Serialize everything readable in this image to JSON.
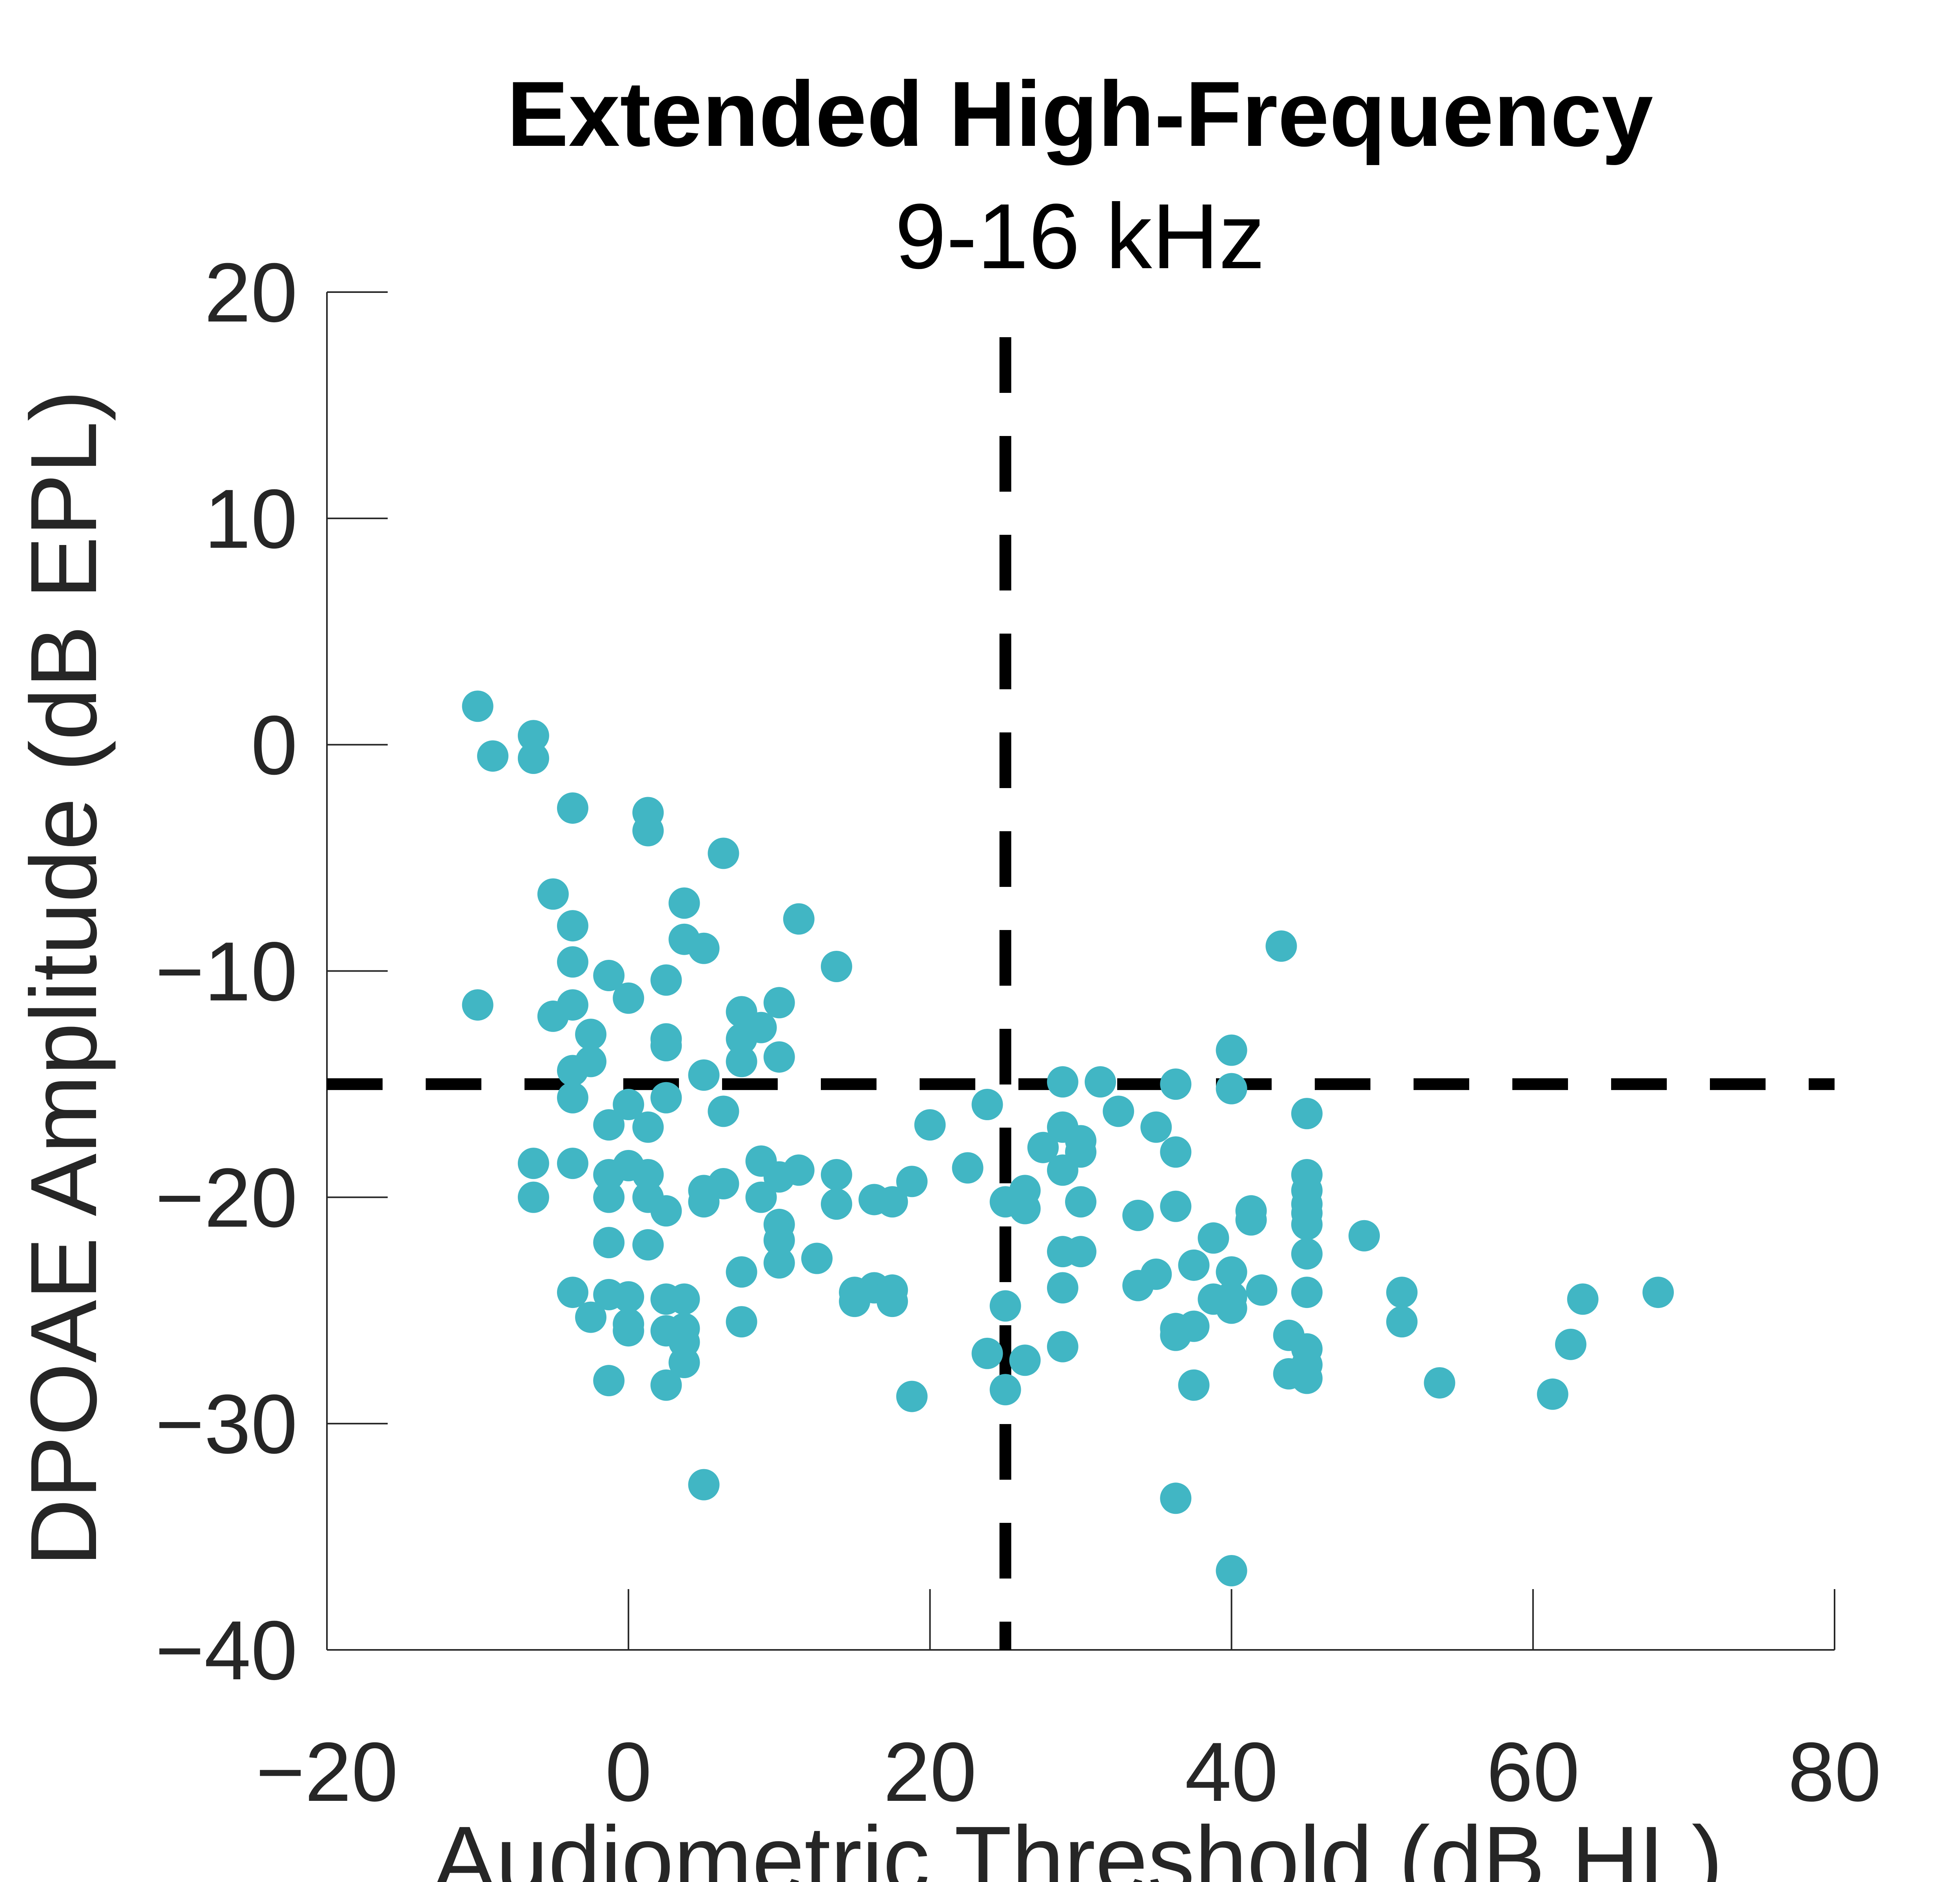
{
  "chart_data": {
    "type": "scatter",
    "title": "Extended High-Frequency",
    "subtitle": "9-16 kHz",
    "xlabel": "Audiometric Threshold (dB HL)",
    "ylabel": "DPOAE Amplitude (dB EPL)",
    "xlim": [
      -20,
      80
    ],
    "ylim": [
      -40,
      20
    ],
    "xticks": [
      -20,
      0,
      20,
      40,
      60,
      80
    ],
    "yticks": [
      -40,
      -30,
      -20,
      -10,
      0,
      10,
      20
    ],
    "xtick_labels": [
      "−20",
      "0",
      "20",
      "40",
      "60",
      "80"
    ],
    "ytick_labels": [
      "−40",
      "−30",
      "−20",
      "−10",
      "0",
      "10",
      "20"
    ],
    "marker_color": "#41B6C4",
    "reference_lines": {
      "x": 25,
      "y": -15,
      "style": "dashed",
      "color": "#000000"
    },
    "grid": false,
    "points": [
      [
        -10,
        1.7
      ],
      [
        -9,
        -0.5
      ],
      [
        -6.3,
        0.4
      ],
      [
        -6.3,
        -0.6
      ],
      [
        -3.7,
        -2.8
      ],
      [
        -5,
        -6.6
      ],
      [
        -3.7,
        -8
      ],
      [
        -3.7,
        -9.6
      ],
      [
        -10,
        -11.5
      ],
      [
        -5,
        -12
      ],
      [
        -3.7,
        -11.5
      ],
      [
        -2.5,
        -12.8
      ],
      [
        -2.5,
        -14
      ],
      [
        -3.7,
        -14.4
      ],
      [
        -3.7,
        -15.6
      ],
      [
        -6.3,
        -18.5
      ],
      [
        -3.7,
        -18.5
      ],
      [
        -6.3,
        -20
      ],
      [
        -1.3,
        -10.2
      ],
      [
        0,
        -11.2
      ],
      [
        1.3,
        -3
      ],
      [
        1.3,
        -3.8
      ],
      [
        3.7,
        -7
      ],
      [
        3.7,
        -8.6
      ],
      [
        5,
        -9
      ],
      [
        2.5,
        -10.4
      ],
      [
        6.3,
        -4.8
      ],
      [
        2.5,
        -13
      ],
      [
        2.5,
        -13.3
      ],
      [
        5,
        -14.6
      ],
      [
        2.5,
        -15.6
      ],
      [
        0,
        -15.9
      ],
      [
        -1.3,
        -16.8
      ],
      [
        1.3,
        -16.9
      ],
      [
        6.3,
        -16.2
      ],
      [
        0,
        -18.6
      ],
      [
        -1.3,
        -19
      ],
      [
        1.3,
        -19
      ],
      [
        -1.3,
        -20
      ],
      [
        1.3,
        -20
      ],
      [
        2.5,
        -20.6
      ],
      [
        5,
        -19.7
      ],
      [
        5,
        -20.2
      ],
      [
        6.3,
        -19.4
      ],
      [
        -1.3,
        -22
      ],
      [
        1.3,
        -22.1
      ],
      [
        -3.7,
        -24.2
      ],
      [
        -1.3,
        -24.3
      ],
      [
        0,
        -24.4
      ],
      [
        2.5,
        -24.5
      ],
      [
        3.7,
        -24.5
      ],
      [
        -2.5,
        -25.3
      ],
      [
        0,
        -25.6
      ],
      [
        0,
        -25.9
      ],
      [
        2.5,
        -25.9
      ],
      [
        3.7,
        -25.8
      ],
      [
        3.7,
        -26.4
      ],
      [
        3.7,
        -27.3
      ],
      [
        -1.3,
        -28.1
      ],
      [
        2.5,
        -28.3
      ],
      [
        5,
        -32.7
      ],
      [
        7.5,
        -11.8
      ],
      [
        7.5,
        -13
      ],
      [
        8.8,
        -12.5
      ],
      [
        10,
        -11.4
      ],
      [
        7.5,
        -14
      ],
      [
        10,
        -13.8
      ],
      [
        11.3,
        -7.7
      ],
      [
        13.8,
        -9.8
      ],
      [
        8.8,
        -18.4
      ],
      [
        10,
        -19.1
      ],
      [
        11.3,
        -18.8
      ],
      [
        8.8,
        -20
      ],
      [
        10,
        -21.2
      ],
      [
        10,
        -21.9
      ],
      [
        10,
        -22.9
      ],
      [
        12.5,
        -22.7
      ],
      [
        7.5,
        -23.3
      ],
      [
        7.5,
        -25.5
      ],
      [
        13.8,
        -19
      ],
      [
        13.8,
        -20.3
      ],
      [
        16.3,
        -20.1
      ],
      [
        17.5,
        -20.2
      ],
      [
        18.8,
        -19.3
      ],
      [
        20,
        -16.8
      ],
      [
        15,
        -24.2
      ],
      [
        15,
        -24.6
      ],
      [
        16.3,
        -24
      ],
      [
        17.5,
        -24.1
      ],
      [
        17.5,
        -24.6
      ],
      [
        18.8,
        -28.8
      ],
      [
        22.5,
        -18.7
      ],
      [
        23.8,
        -15.9
      ],
      [
        25,
        -20.2
      ],
      [
        26.3,
        -19.7
      ],
      [
        26.3,
        -20.5
      ],
      [
        25,
        -24.8
      ],
      [
        23.8,
        -26.9
      ],
      [
        25,
        -28.5
      ],
      [
        26.3,
        -27.2
      ],
      [
        28.8,
        -14.9
      ],
      [
        31.3,
        -14.9
      ],
      [
        28.8,
        -16.9
      ],
      [
        30,
        -17.5
      ],
      [
        27.5,
        -17.8
      ],
      [
        30,
        -18
      ],
      [
        28.8,
        -18.8
      ],
      [
        30,
        -20.2
      ],
      [
        28.8,
        -22.4
      ],
      [
        30,
        -22.4
      ],
      [
        28.8,
        -24
      ],
      [
        28.8,
        -26.6
      ],
      [
        32.5,
        -16.2
      ],
      [
        35,
        -16.9
      ],
      [
        36.3,
        -15
      ],
      [
        36.3,
        -18
      ],
      [
        33.8,
        -20.8
      ],
      [
        36.3,
        -20.4
      ],
      [
        38.8,
        -21.8
      ],
      [
        37.5,
        -23
      ],
      [
        40,
        -23.3
      ],
      [
        35,
        -23.4
      ],
      [
        33.8,
        -23.9
      ],
      [
        40,
        -24.4
      ],
      [
        38.8,
        -24.5
      ],
      [
        40,
        -24.9
      ],
      [
        36.3,
        -25.8
      ],
      [
        37.5,
        -25.7
      ],
      [
        36.3,
        -26.1
      ],
      [
        37.5,
        -28.3
      ],
      [
        36.3,
        -33.3
      ],
      [
        40,
        -36.5
      ],
      [
        43.3,
        -8.9
      ],
      [
        40,
        -13.5
      ],
      [
        40,
        -15.2
      ],
      [
        41.3,
        -20.6
      ],
      [
        41.3,
        -21
      ],
      [
        42,
        -24.1
      ],
      [
        43.8,
        -26.1
      ],
      [
        43.8,
        -27.8
      ],
      [
        45,
        -16.3
      ],
      [
        45,
        -19
      ],
      [
        45,
        -19.7
      ],
      [
        45,
        -20.3
      ],
      [
        45,
        -20.7
      ],
      [
        45,
        -21.2
      ],
      [
        45,
        -22.5
      ],
      [
        45,
        -24.2
      ],
      [
        45,
        -26.7
      ],
      [
        45,
        -27.4
      ],
      [
        45,
        -28
      ],
      [
        48.8,
        -21.7
      ],
      [
        51.3,
        -24.2
      ],
      [
        51.3,
        -25.5
      ],
      [
        53.8,
        -28.2
      ],
      [
        61.3,
        -28.7
      ],
      [
        62.5,
        -26.5
      ],
      [
        63.3,
        -24.5
      ],
      [
        68.3,
        -24.2
      ]
    ]
  }
}
